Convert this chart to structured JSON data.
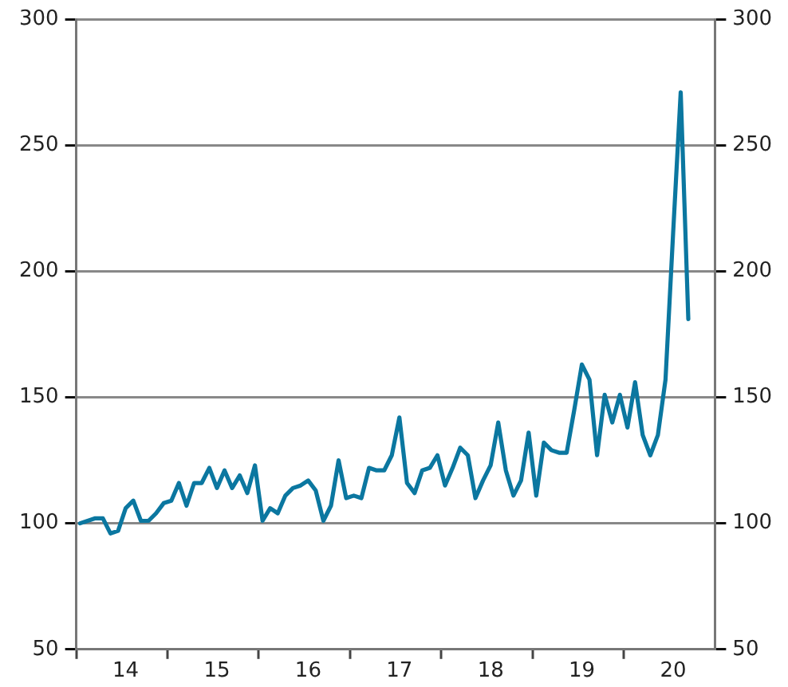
{
  "chart_data": {
    "type": "line",
    "categories": [
      null,
      null,
      null,
      null,
      null,
      null,
      "14",
      null,
      null,
      null,
      null,
      null,
      null,
      null,
      null,
      null,
      null,
      null,
      "15",
      null,
      null,
      null,
      null,
      null,
      null,
      null,
      null,
      null,
      null,
      null,
      "16",
      null,
      null,
      null,
      null,
      null,
      null,
      null,
      null,
      null,
      null,
      null,
      "17",
      null,
      null,
      null,
      null,
      null,
      null,
      null,
      null,
      null,
      null,
      null,
      "18",
      null,
      null,
      null,
      null,
      null,
      null,
      null,
      null,
      null,
      null,
      null,
      "19",
      null,
      null,
      null,
      null,
      null,
      null,
      null,
      null,
      null,
      null,
      null,
      "20",
      null,
      null,
      null,
      null,
      null
    ],
    "series": [
      {
        "color": "#0b77a0",
        "values": [
          100,
          101,
          102,
          102,
          96,
          97,
          106,
          109,
          101,
          101,
          104,
          108,
          109,
          116,
          107,
          116,
          116,
          122,
          114,
          121,
          114,
          119,
          112,
          123,
          101,
          106,
          104,
          111,
          114,
          115,
          117,
          113,
          101,
          107,
          125,
          110,
          111,
          110,
          122,
          121,
          121,
          127,
          142,
          116,
          112,
          121,
          122,
          127,
          115,
          122,
          130,
          127,
          110,
          117,
          123,
          140,
          121,
          111,
          117,
          136,
          111,
          132,
          129,
          128,
          128,
          145,
          163,
          157,
          127,
          151,
          140,
          151,
          138,
          156,
          135,
          127,
          135,
          157,
          215,
          271,
          181,
          null,
          null,
          null
        ]
      }
    ],
    "ylim": [
      50,
      300
    ],
    "yticks": [
      50,
      100,
      150,
      200,
      250,
      300
    ],
    "y2lim": [
      50,
      300
    ],
    "y2ticks": [
      50,
      100,
      150,
      200,
      250,
      300
    ],
    "grid": "y",
    "marker": "none",
    "line_style": "solid",
    "legend": false
  }
}
